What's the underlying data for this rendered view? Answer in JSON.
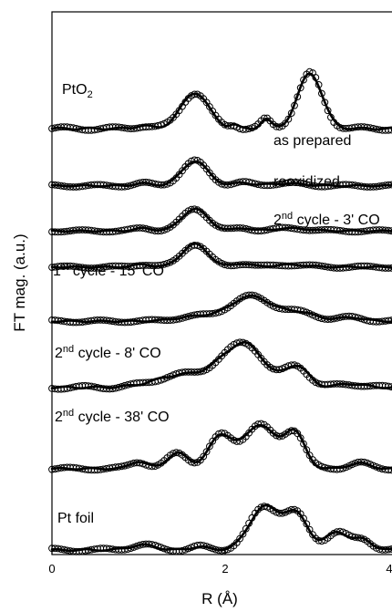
{
  "chart_data": {
    "type": "line",
    "xlabel": "R (Å)",
    "ylabel": "FT mag. (a.u.)",
    "xlim": [
      0,
      4
    ],
    "x_ticks": [
      "0",
      "2",
      "4"
    ],
    "grid": false,
    "series": [
      {
        "name": "PtO2",
        "label_main": "PtO",
        "label_sub": "2",
        "label_sup": "",
        "label_rest": "",
        "baseline": 7.0,
        "amp": 1.95,
        "peaks": [
          [
            1.05,
            0.09,
            0.08
          ],
          [
            1.65,
            0.16,
            1.0
          ],
          [
            2.1,
            0.05,
            0.1
          ],
          [
            2.47,
            0.06,
            0.26
          ],
          [
            2.98,
            0.14,
            1.55
          ]
        ]
      },
      {
        "name": "as prepared",
        "label_main": "as prepared",
        "label_sub": "",
        "label_sup": "",
        "label_rest": "",
        "baseline": 6.05,
        "amp": 1.35,
        "peaks": [
          [
            1.05,
            0.1,
            0.1
          ],
          [
            1.65,
            0.15,
            1.0
          ],
          [
            2.2,
            0.1,
            0.12
          ],
          [
            2.7,
            0.2,
            0.1
          ]
        ]
      },
      {
        "name": "reoxidized",
        "label_main": "reoxidized",
        "label_sub": "",
        "label_sup": "",
        "label_rest": "",
        "baseline": 5.3,
        "amp": 1.2,
        "peaks": [
          [
            1.05,
            0.1,
            0.12
          ],
          [
            1.65,
            0.15,
            1.0
          ],
          [
            2.2,
            0.1,
            0.12
          ],
          [
            2.75,
            0.2,
            0.12
          ]
        ]
      },
      {
        "name": "2nd cycle - 3' CO",
        "label_main": "2",
        "label_sub": "",
        "label_sup": "nd",
        "label_rest": " cycle - 3' CO",
        "baseline": 4.7,
        "amp": 1.25,
        "peaks": [
          [
            1.05,
            0.1,
            0.12
          ],
          [
            1.65,
            0.15,
            1.0
          ],
          [
            2.2,
            0.1,
            0.15
          ],
          [
            2.75,
            0.2,
            0.1
          ]
        ]
      },
      {
        "name": "1st cycle - 15' CO",
        "label_main": "1",
        "label_sub": "",
        "label_sup": "st",
        "label_rest": " cycle - 15' CO",
        "baseline": 3.8,
        "amp": 1.35,
        "peaks": [
          [
            1.7,
            0.25,
            0.2
          ],
          [
            2.3,
            0.23,
            1.0
          ],
          [
            2.85,
            0.2,
            0.35
          ],
          [
            3.45,
            0.15,
            0.15
          ]
        ]
      },
      {
        "name": "2nd cycle - 8' CO",
        "label_main": "2",
        "label_sub": "",
        "label_sup": "nd",
        "label_rest": " cycle - 8' CO",
        "baseline": 2.7,
        "amp": 1.95,
        "peaks": [
          [
            1.5,
            0.3,
            0.35
          ],
          [
            2.0,
            0.2,
            0.5
          ],
          [
            2.28,
            0.2,
            1.0
          ],
          [
            2.82,
            0.14,
            0.6
          ],
          [
            3.45,
            0.15,
            0.1
          ]
        ]
      },
      {
        "name": "2nd cycle - 38' CO",
        "label_main": "2",
        "label_sub": "",
        "label_sup": "nd",
        "label_rest": " cycle - 38' CO",
        "baseline": 1.35,
        "amp": 1.55,
        "peaks": [
          [
            1.0,
            0.1,
            0.25
          ],
          [
            1.45,
            0.12,
            0.55
          ],
          [
            1.95,
            0.14,
            1.15
          ],
          [
            2.4,
            0.18,
            1.55
          ],
          [
            2.8,
            0.12,
            1.25
          ],
          [
            3.55,
            0.12,
            0.2
          ]
        ]
      },
      {
        "name": "Pt foil",
        "label_main": "Pt foil",
        "label_sub": "",
        "label_sup": "",
        "label_rest": "",
        "baseline": 0.0,
        "amp": 1.8,
        "peaks": [
          [
            1.05,
            0.15,
            0.15
          ],
          [
            1.7,
            0.1,
            0.1
          ],
          [
            2.45,
            0.17,
            1.3
          ],
          [
            2.82,
            0.14,
            1.05
          ],
          [
            3.3,
            0.13,
            0.55
          ],
          [
            3.6,
            0.1,
            0.3
          ]
        ]
      }
    ]
  }
}
